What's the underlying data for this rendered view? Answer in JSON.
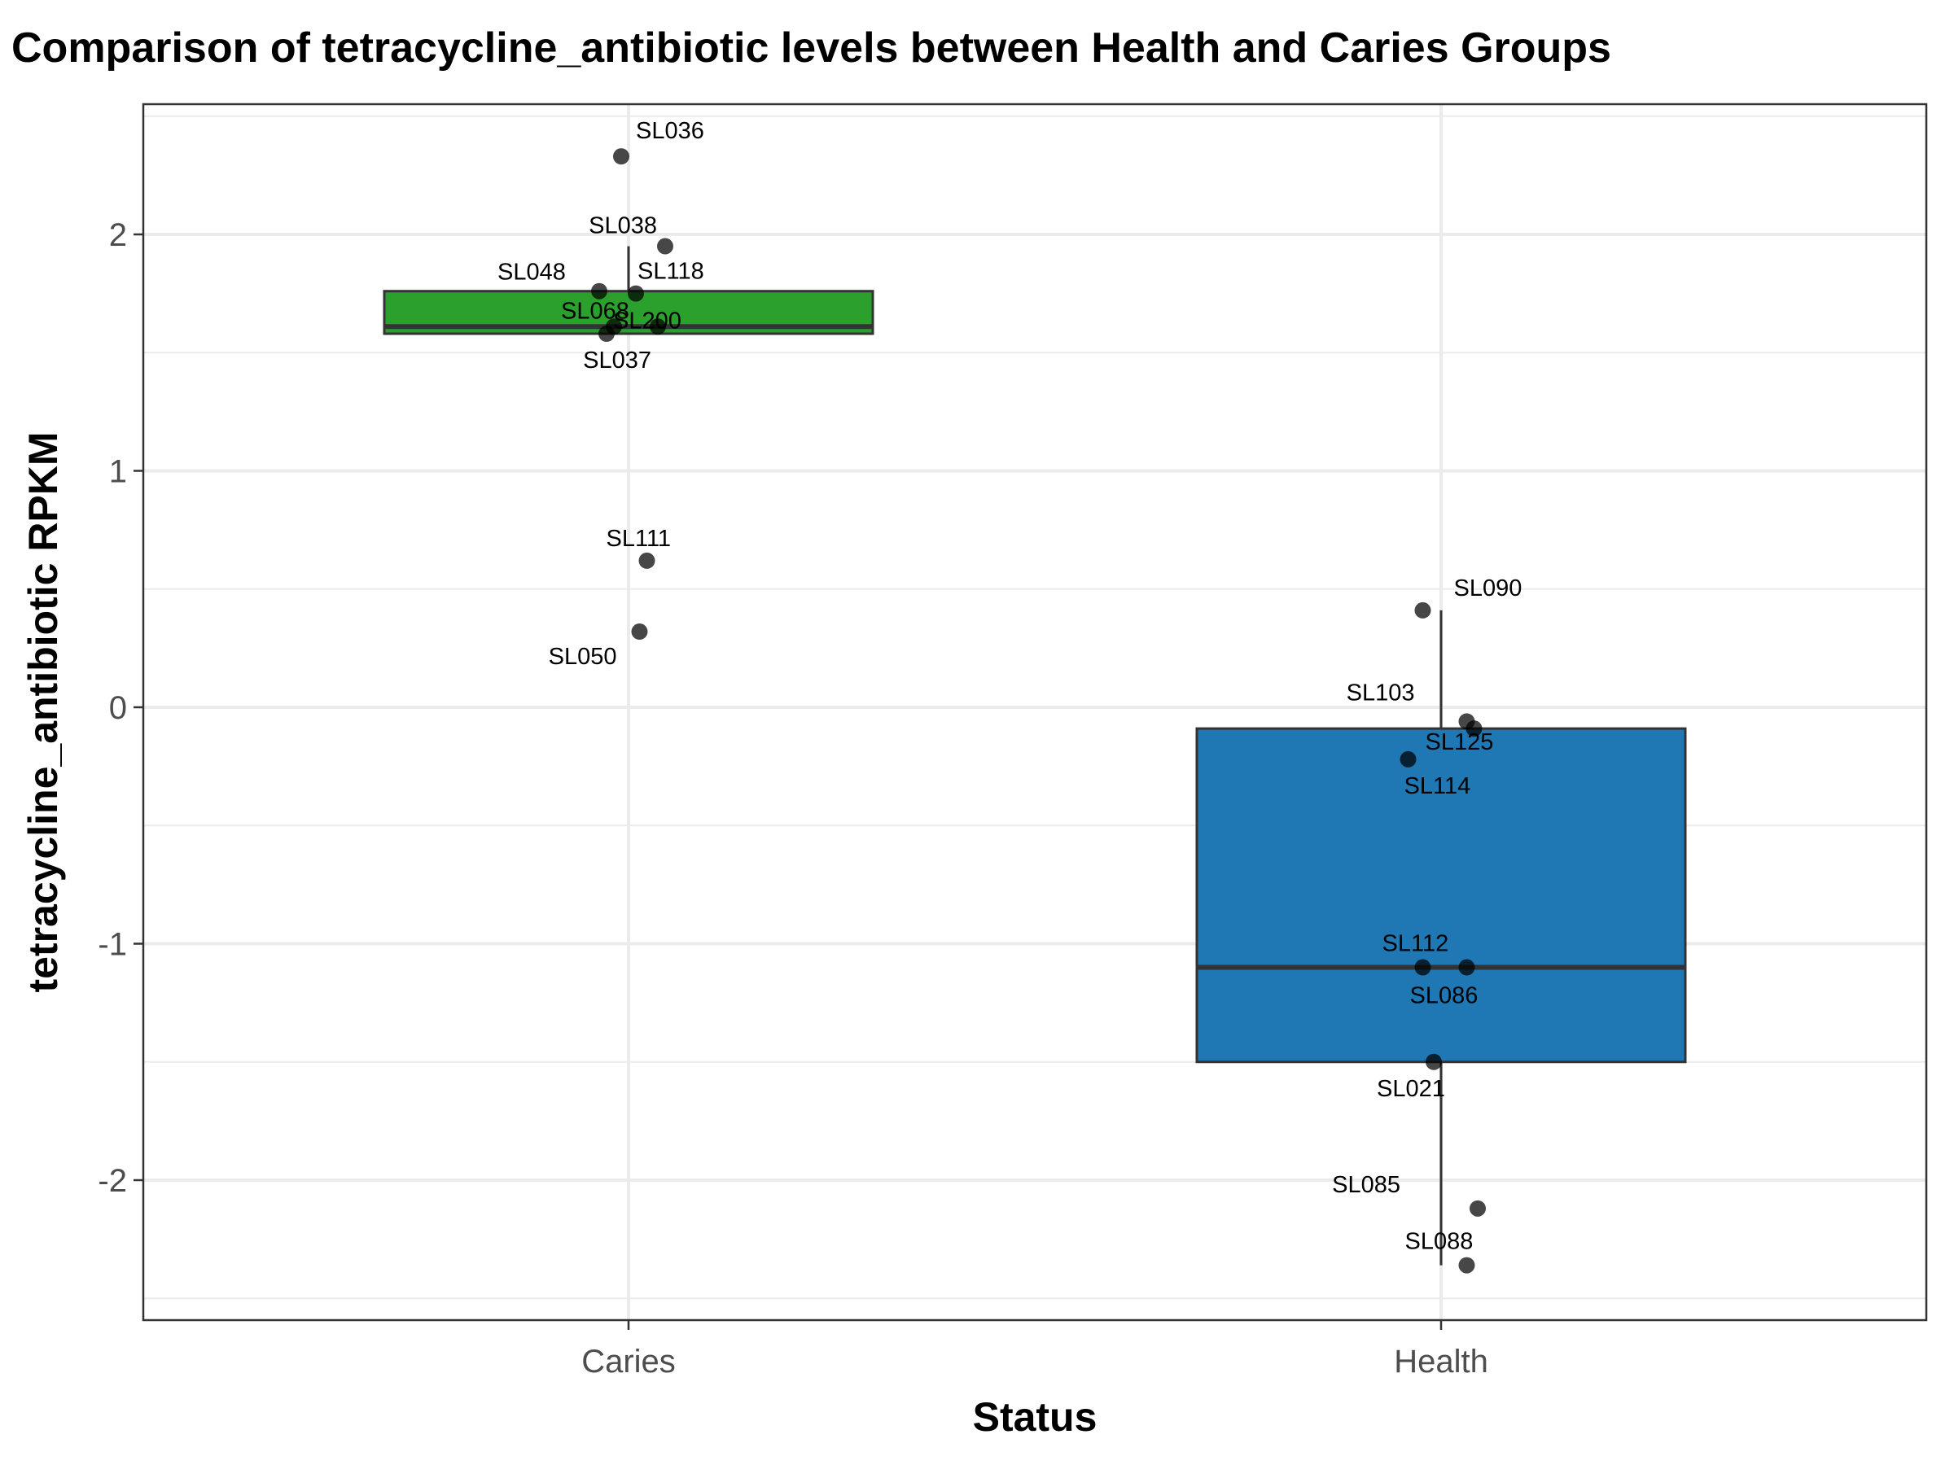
{
  "chart_data": {
    "type": "box",
    "title": "Comparison of tetracycline_antibiotic levels between Health and Caries Groups",
    "xlabel": "Status",
    "ylabel": "tetracycline_antibiotic RPKM",
    "categories": [
      "Caries",
      "Health"
    ],
    "ylim": [
      -2.6,
      2.55
    ],
    "yticks": [
      -2,
      -1,
      0,
      1,
      2
    ],
    "ytick_labels": [
      "-2",
      "-1",
      "0",
      "1",
      "2"
    ],
    "grid": true,
    "boxes": [
      {
        "category": "Caries",
        "color": "#2ca02c",
        "q1": 1.58,
        "median": 1.61,
        "q3": 1.76,
        "whisker_low": 1.58,
        "whisker_high": 1.95
      },
      {
        "category": "Health",
        "color": "#1f77b4",
        "q1": -1.5,
        "median": -1.1,
        "q3": -0.09,
        "whisker_low": -2.36,
        "whisker_high": 0.41
      }
    ],
    "points": [
      {
        "category": "Caries",
        "label": "SL036",
        "value": 2.33,
        "jitter": -0.02
      },
      {
        "category": "Caries",
        "label": "SL038",
        "value": 1.95,
        "jitter": 0.1
      },
      {
        "category": "Caries",
        "label": "SL048",
        "value": 1.76,
        "jitter": -0.08
      },
      {
        "category": "Caries",
        "label": "SL118",
        "value": 1.75,
        "jitter": 0.02
      },
      {
        "category": "Caries",
        "label": "SL068",
        "value": 1.61,
        "jitter": -0.04
      },
      {
        "category": "Caries",
        "label": "SL200",
        "value": 1.61,
        "jitter": 0.08
      },
      {
        "category": "Caries",
        "label": "SL037",
        "value": 1.58,
        "jitter": -0.06
      },
      {
        "category": "Caries",
        "label": "SL111",
        "value": 0.62,
        "jitter": 0.05
      },
      {
        "category": "Caries",
        "label": "SL050",
        "value": 0.32,
        "jitter": 0.03
      },
      {
        "category": "Health",
        "label": "SL090",
        "value": 0.41,
        "jitter": -0.05
      },
      {
        "category": "Health",
        "label": "SL103",
        "value": -0.06,
        "jitter": 0.07
      },
      {
        "category": "Health",
        "label": "SL125",
        "value": -0.09,
        "jitter": 0.09
      },
      {
        "category": "Health",
        "label": "SL114",
        "value": -0.22,
        "jitter": -0.09
      },
      {
        "category": "Health",
        "label": "SL112",
        "value": -1.1,
        "jitter": -0.05
      },
      {
        "category": "Health",
        "label": "SL086",
        "value": -1.1,
        "jitter": 0.07
      },
      {
        "category": "Health",
        "label": "SL021",
        "value": -1.5,
        "jitter": -0.02
      },
      {
        "category": "Health",
        "label": "SL085",
        "value": -2.12,
        "jitter": 0.1
      },
      {
        "category": "Health",
        "label": "SL088",
        "value": -2.36,
        "jitter": 0.07
      }
    ]
  }
}
